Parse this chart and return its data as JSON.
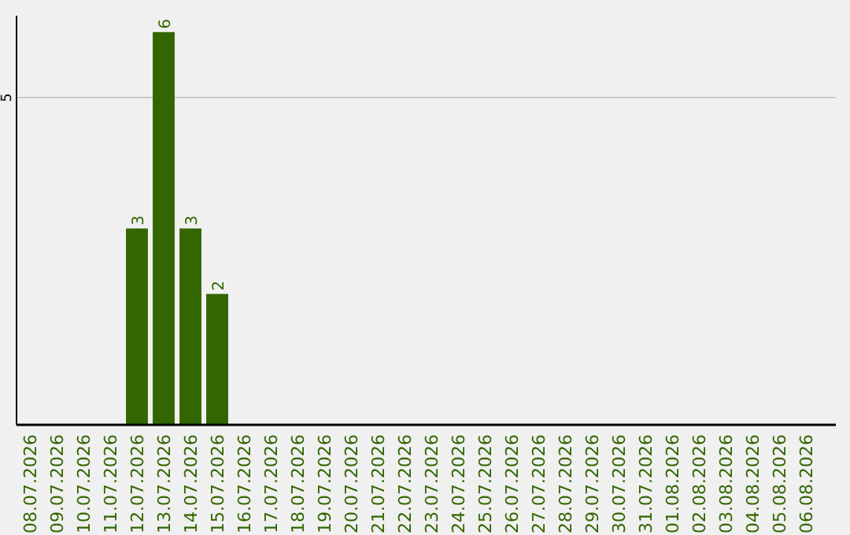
{
  "chart_data": {
    "type": "bar",
    "categories": [
      "08.07.2026",
      "09.07.2026",
      "10.07.2026",
      "11.07.2026",
      "12.07.2026",
      "13.07.2026",
      "14.07.2026",
      "15.07.2026",
      "16.07.2026",
      "17.07.2026",
      "18.07.2026",
      "19.07.2026",
      "20.07.2026",
      "21.07.2026",
      "22.07.2026",
      "23.07.2026",
      "24.07.2026",
      "25.07.2026",
      "26.07.2026",
      "27.07.2026",
      "28.07.2026",
      "29.07.2026",
      "30.07.2026",
      "31.07.2026",
      "01.08.2026",
      "02.08.2026",
      "03.08.2026",
      "04.08.2026",
      "05.08.2026",
      "06.08.2026"
    ],
    "values": [
      0,
      0,
      0,
      0,
      3,
      6,
      3,
      2,
      0,
      0,
      0,
      0,
      0,
      0,
      0,
      0,
      0,
      0,
      0,
      0,
      0,
      0,
      0,
      0,
      0,
      0,
      0,
      0,
      0,
      0
    ],
    "value_labels": [
      null,
      null,
      null,
      null,
      "3",
      "6",
      "3",
      "2",
      null,
      null,
      null,
      null,
      null,
      null,
      null,
      null,
      null,
      null,
      null,
      null,
      null,
      null,
      null,
      null,
      null,
      null,
      null,
      null,
      null,
      null
    ],
    "color": "#336600",
    "ylim": [
      0,
      6.25
    ],
    "yticks": [
      5
    ],
    "grid": "y"
  }
}
